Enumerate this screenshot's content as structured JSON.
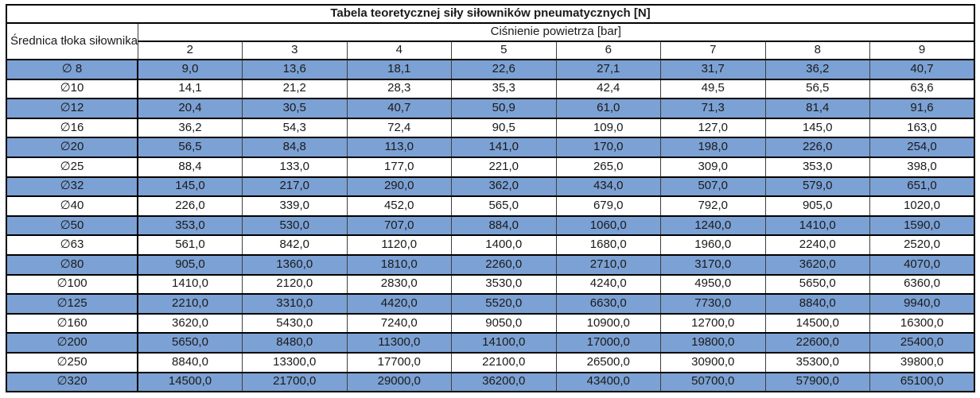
{
  "table": {
    "title": "Tabela teoretycznej siły siłowników pneumatycznych [N]",
    "row_header": "Średnica tłoka siłownika",
    "col_group_header": "Ciśnienie powietrza [bar]",
    "pressures": [
      "2",
      "3",
      "4",
      "5",
      "6",
      "7",
      "8",
      "9"
    ],
    "rows": [
      {
        "diameter": "∅ 8",
        "values": [
          "9,0",
          "13,6",
          "18,1",
          "22,6",
          "27,1",
          "31,7",
          "36,2",
          "40,7"
        ]
      },
      {
        "diameter": "∅10",
        "values": [
          "14,1",
          "21,2",
          "28,3",
          "35,3",
          "42,4",
          "49,5",
          "56,5",
          "63,6"
        ]
      },
      {
        "diameter": "∅12",
        "values": [
          "20,4",
          "30,5",
          "40,7",
          "50,9",
          "61,0",
          "71,3",
          "81,4",
          "91,6"
        ]
      },
      {
        "diameter": "∅16",
        "values": [
          "36,2",
          "54,3",
          "72,4",
          "90,5",
          "109,0",
          "127,0",
          "145,0",
          "163,0"
        ]
      },
      {
        "diameter": "∅20",
        "values": [
          "56,5",
          "84,8",
          "113,0",
          "141,0",
          "170,0",
          "198,0",
          "226,0",
          "254,0"
        ]
      },
      {
        "diameter": "∅25",
        "values": [
          "88,4",
          "133,0",
          "177,0",
          "221,0",
          "265,0",
          "309,0",
          "353,0",
          "398,0"
        ]
      },
      {
        "diameter": "∅32",
        "values": [
          "145,0",
          "217,0",
          "290,0",
          "362,0",
          "434,0",
          "507,0",
          "579,0",
          "651,0"
        ]
      },
      {
        "diameter": "∅40",
        "values": [
          "226,0",
          "339,0",
          "452,0",
          "565,0",
          "679,0",
          "792,0",
          "905,0",
          "1020,0"
        ]
      },
      {
        "diameter": "∅50",
        "values": [
          "353,0",
          "530,0",
          "707,0",
          "884,0",
          "1060,0",
          "1240,0",
          "1410,0",
          "1590,0"
        ]
      },
      {
        "diameter": "∅63",
        "values": [
          "561,0",
          "842,0",
          "1120,0",
          "1400,0",
          "1680,0",
          "1960,0",
          "2240,0",
          "2520,0"
        ]
      },
      {
        "diameter": "∅80",
        "values": [
          "905,0",
          "1360,0",
          "1810,0",
          "2260,0",
          "2710,0",
          "3170,0",
          "3620,0",
          "4070,0"
        ]
      },
      {
        "diameter": "∅100",
        "values": [
          "1410,0",
          "2120,0",
          "2830,0",
          "3530,0",
          "4240,0",
          "4950,0",
          "5650,0",
          "6360,0"
        ]
      },
      {
        "diameter": "∅125",
        "values": [
          "2210,0",
          "3310,0",
          "4420,0",
          "5520,0",
          "6630,0",
          "7730,0",
          "8840,0",
          "9940,0"
        ]
      },
      {
        "diameter": "∅160",
        "values": [
          "3620,0",
          "5430,0",
          "7240,0",
          "9050,0",
          "10900,0",
          "12700,0",
          "14500,0",
          "16300,0"
        ]
      },
      {
        "diameter": "∅200",
        "values": [
          "5650,0",
          "8480,0",
          "11300,0",
          "14100,0",
          "17000,0",
          "19800,0",
          "22600,0",
          "25400,0"
        ]
      },
      {
        "diameter": "∅250",
        "values": [
          "8840,0",
          "13300,0",
          "17700,0",
          "22100,0",
          "26500,0",
          "30900,0",
          "35300,0",
          "39800,0"
        ]
      },
      {
        "diameter": "∅320",
        "values": [
          "14500,0",
          "21700,0",
          "29000,0",
          "36200,0",
          "43400,0",
          "50700,0",
          "57900,0",
          "65100,0"
        ]
      }
    ]
  },
  "colors": {
    "row_highlight": "#7ca1d4",
    "border": "#000000",
    "column_line": "#3f3f3f"
  }
}
